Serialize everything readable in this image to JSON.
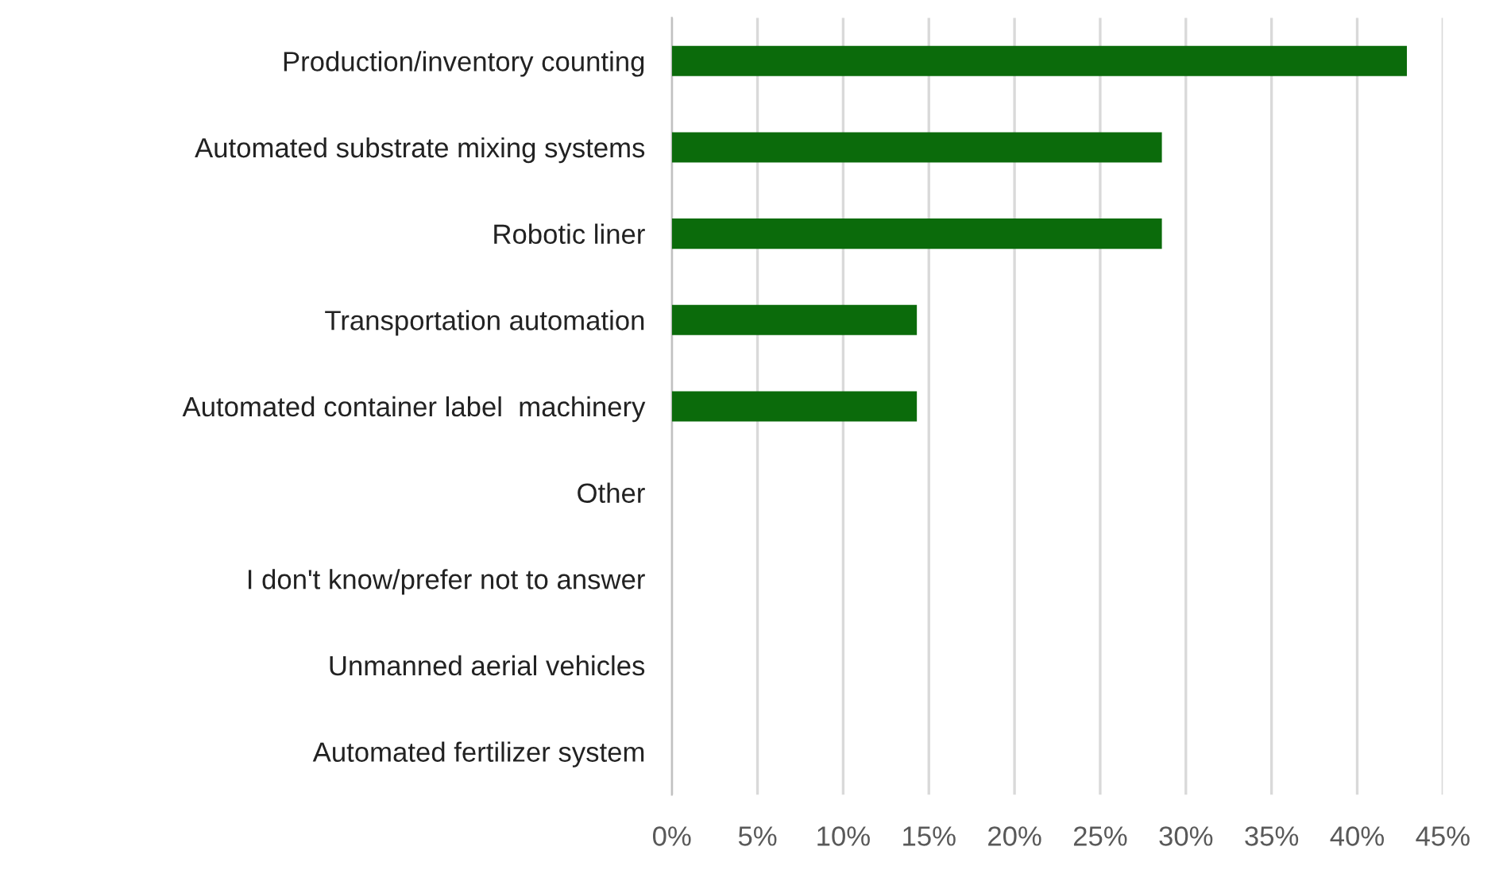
{
  "chart_data": {
    "type": "bar",
    "orientation": "horizontal",
    "categories": [
      "Production/inventory counting",
      "Automated substrate mixing systems",
      "Robotic liner",
      "Transportation automation",
      "Automated container label  machinery",
      "Other",
      "I don't know/prefer not to answer",
      "Unmanned aerial vehicles",
      "Automated fertilizer system"
    ],
    "values": [
      42.9,
      28.6,
      28.6,
      14.3,
      14.3,
      0,
      0,
      0,
      0
    ],
    "color": "#0b6b0b",
    "xlim": [
      0,
      45
    ],
    "xticks": [
      {
        "value": 0,
        "label": "0%"
      },
      {
        "value": 5,
        "label": "5%"
      },
      {
        "value": 10,
        "label": "10%"
      },
      {
        "value": 15,
        "label": "15%"
      },
      {
        "value": 20,
        "label": "20%"
      },
      {
        "value": 25,
        "label": "25%"
      },
      {
        "value": 30,
        "label": "30%"
      },
      {
        "value": 35,
        "label": "35%"
      },
      {
        "value": 40,
        "label": "40%"
      },
      {
        "value": 45,
        "label": "45%"
      }
    ],
    "grid": "x"
  }
}
